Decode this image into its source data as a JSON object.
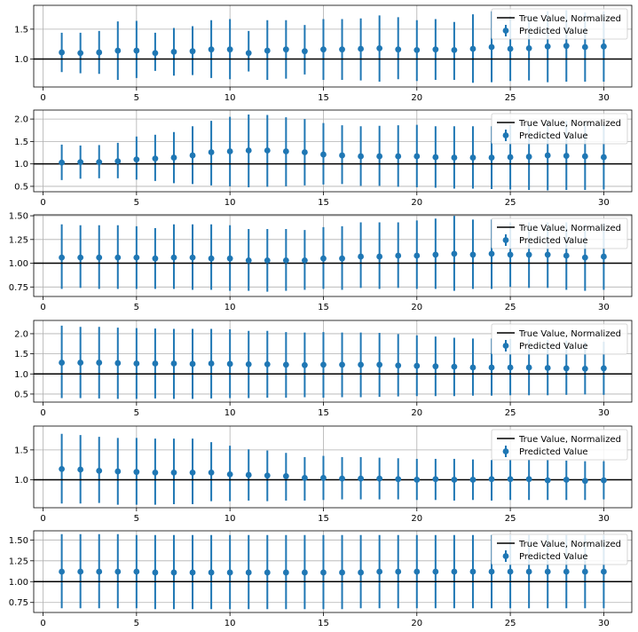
{
  "figure": {
    "background": "#ffffff"
  },
  "style": {
    "marker_color": "#1f77b4",
    "truth_line_color": "#000000",
    "grid_color": "#b0b0b0"
  },
  "chart_data": [
    {
      "type": "errorbar",
      "xlim": [
        -0.5,
        31.5
      ],
      "ylim": [
        0.53,
        1.9
      ],
      "xticks": [
        0,
        5,
        10,
        15,
        20,
        25,
        30
      ],
      "yticks": [
        1.0,
        1.5
      ],
      "ytick_labels": [
        "1.0",
        "1.5"
      ],
      "grid": true,
      "legend_position": "upper right",
      "truth_line": {
        "label": "True Value, Normalized",
        "y": 1.0
      },
      "series": [
        {
          "label": "Predicted Value",
          "x": [
            1,
            2,
            3,
            4,
            5,
            6,
            7,
            8,
            9,
            10,
            11,
            12,
            13,
            14,
            15,
            16,
            17,
            18,
            19,
            20,
            21,
            22,
            23,
            24,
            25,
            26,
            27,
            28,
            29,
            30
          ],
          "y": [
            1.11,
            1.1,
            1.11,
            1.14,
            1.14,
            1.1,
            1.12,
            1.13,
            1.16,
            1.16,
            1.1,
            1.14,
            1.16,
            1.13,
            1.16,
            1.16,
            1.17,
            1.18,
            1.16,
            1.15,
            1.16,
            1.15,
            1.17,
            1.2,
            1.17,
            1.18,
            1.21,
            1.22,
            1.2,
            1.21
          ],
          "ylow": [
            0.78,
            0.76,
            0.75,
            0.65,
            0.68,
            0.8,
            0.72,
            0.73,
            0.68,
            0.66,
            0.79,
            0.65,
            0.67,
            0.74,
            0.65,
            0.65,
            0.64,
            0.62,
            0.66,
            0.63,
            0.65,
            0.65,
            0.6,
            0.61,
            0.63,
            0.64,
            0.61,
            0.62,
            0.62,
            0.62
          ],
          "yhigh": [
            1.44,
            1.44,
            1.47,
            1.63,
            1.64,
            1.44,
            1.52,
            1.55,
            1.65,
            1.67,
            1.47,
            1.65,
            1.65,
            1.57,
            1.67,
            1.67,
            1.68,
            1.73,
            1.7,
            1.65,
            1.67,
            1.62,
            1.75,
            1.8,
            1.72,
            1.73,
            1.8,
            1.82,
            1.78,
            1.8
          ]
        }
      ]
    },
    {
      "type": "errorbar",
      "xlim": [
        -0.5,
        31.5
      ],
      "ylim": [
        0.38,
        2.2
      ],
      "xticks": [
        0,
        5,
        10,
        15,
        20,
        25,
        30
      ],
      "yticks": [
        0.5,
        1.0,
        1.5,
        2.0
      ],
      "ytick_labels": [
        "0.5",
        "1.0",
        "1.5",
        "2.0"
      ],
      "grid": true,
      "legend_position": "upper right",
      "truth_line": {
        "label": "True Value, Normalized",
        "y": 1.0
      },
      "series": [
        {
          "label": "Predicted Value",
          "x": [
            1,
            2,
            3,
            4,
            5,
            6,
            7,
            8,
            9,
            10,
            11,
            12,
            13,
            14,
            15,
            16,
            17,
            18,
            19,
            20,
            21,
            22,
            23,
            24,
            25,
            26,
            27,
            28,
            29,
            30
          ],
          "y": [
            1.03,
            1.04,
            1.04,
            1.06,
            1.1,
            1.12,
            1.14,
            1.19,
            1.26,
            1.28,
            1.3,
            1.3,
            1.28,
            1.26,
            1.21,
            1.19,
            1.17,
            1.17,
            1.17,
            1.17,
            1.15,
            1.14,
            1.14,
            1.14,
            1.15,
            1.16,
            1.19,
            1.18,
            1.17,
            1.15
          ],
          "ylow": [
            0.64,
            0.67,
            0.68,
            0.68,
            0.65,
            0.62,
            0.57,
            0.55,
            0.52,
            0.5,
            0.48,
            0.49,
            0.5,
            0.52,
            0.54,
            0.55,
            0.51,
            0.51,
            0.49,
            0.48,
            0.47,
            0.45,
            0.45,
            0.44,
            0.43,
            0.42,
            0.41,
            0.42,
            0.42,
            0.43
          ],
          "yhigh": [
            1.43,
            1.41,
            1.42,
            1.47,
            1.61,
            1.65,
            1.71,
            1.84,
            1.96,
            2.05,
            2.1,
            2.09,
            2.04,
            2.0,
            1.91,
            1.86,
            1.84,
            1.85,
            1.86,
            1.87,
            1.84,
            1.84,
            1.84,
            1.84,
            1.87,
            1.9,
            1.96,
            1.96,
            1.93,
            1.88
          ]
        }
      ]
    },
    {
      "type": "errorbar",
      "xlim": [
        -0.5,
        31.5
      ],
      "ylim": [
        0.65,
        1.51
      ],
      "xticks": [
        0,
        5,
        10,
        15,
        20,
        25,
        30
      ],
      "yticks": [
        0.75,
        1.0,
        1.25,
        1.5
      ],
      "ytick_labels": [
        "0.75",
        "1.00",
        "1.25",
        "1.50"
      ],
      "grid": true,
      "legend_position": "upper right",
      "truth_line": {
        "label": "True Value, Normalized",
        "y": 1.0
      },
      "series": [
        {
          "label": "Predicted Value",
          "x": [
            1,
            2,
            3,
            4,
            5,
            6,
            7,
            8,
            9,
            10,
            11,
            12,
            13,
            14,
            15,
            16,
            17,
            18,
            19,
            20,
            21,
            22,
            23,
            24,
            25,
            26,
            27,
            28,
            29,
            30
          ],
          "y": [
            1.06,
            1.06,
            1.06,
            1.06,
            1.06,
            1.05,
            1.06,
            1.06,
            1.05,
            1.05,
            1.03,
            1.03,
            1.03,
            1.03,
            1.05,
            1.05,
            1.07,
            1.07,
            1.08,
            1.08,
            1.09,
            1.1,
            1.09,
            1.1,
            1.09,
            1.09,
            1.09,
            1.08,
            1.06,
            1.07
          ],
          "ylow": [
            0.73,
            0.74,
            0.73,
            0.73,
            0.73,
            0.73,
            0.73,
            0.72,
            0.72,
            0.71,
            0.71,
            0.7,
            0.71,
            0.72,
            0.73,
            0.72,
            0.74,
            0.73,
            0.74,
            0.73,
            0.73,
            0.71,
            0.73,
            0.73,
            0.75,
            0.74,
            0.74,
            0.72,
            0.71,
            0.72
          ],
          "yhigh": [
            1.41,
            1.4,
            1.4,
            1.4,
            1.39,
            1.37,
            1.41,
            1.41,
            1.41,
            1.4,
            1.36,
            1.36,
            1.36,
            1.35,
            1.38,
            1.39,
            1.43,
            1.43,
            1.43,
            1.45,
            1.47,
            1.5,
            1.46,
            1.46,
            1.43,
            1.43,
            1.43,
            1.43,
            1.41,
            1.42
          ]
        }
      ]
    },
    {
      "type": "errorbar",
      "xlim": [
        -0.5,
        31.5
      ],
      "ylim": [
        0.3,
        2.33
      ],
      "xticks": [
        0,
        5,
        10,
        15,
        20,
        25,
        30
      ],
      "yticks": [
        0.5,
        1.0,
        1.5,
        2.0
      ],
      "ytick_labels": [
        "0.5",
        "1.0",
        "1.5",
        "2.0"
      ],
      "grid": true,
      "legend_position": "upper right",
      "truth_line": {
        "label": "True Value, Normalized",
        "y": 1.0
      },
      "series": [
        {
          "label": "Predicted Value",
          "x": [
            1,
            2,
            3,
            4,
            5,
            6,
            7,
            8,
            9,
            10,
            11,
            12,
            13,
            14,
            15,
            16,
            17,
            18,
            19,
            20,
            21,
            22,
            23,
            24,
            25,
            26,
            27,
            28,
            29,
            30
          ],
          "y": [
            1.28,
            1.28,
            1.28,
            1.27,
            1.26,
            1.26,
            1.26,
            1.25,
            1.26,
            1.25,
            1.24,
            1.24,
            1.23,
            1.22,
            1.23,
            1.23,
            1.23,
            1.23,
            1.21,
            1.2,
            1.19,
            1.18,
            1.16,
            1.16,
            1.16,
            1.16,
            1.15,
            1.14,
            1.13,
            1.14
          ],
          "ylow": [
            0.4,
            0.4,
            0.39,
            0.38,
            0.38,
            0.39,
            0.38,
            0.38,
            0.39,
            0.4,
            0.4,
            0.41,
            0.41,
            0.42,
            0.41,
            0.42,
            0.42,
            0.43,
            0.44,
            0.45,
            0.45,
            0.45,
            0.46,
            0.46,
            0.47,
            0.47,
            0.47,
            0.48,
            0.49,
            0.48
          ],
          "yhigh": [
            2.2,
            2.17,
            2.17,
            2.15,
            2.14,
            2.13,
            2.12,
            2.12,
            2.12,
            2.11,
            2.07,
            2.07,
            2.04,
            2.03,
            2.04,
            2.03,
            2.03,
            2.02,
            1.99,
            1.96,
            1.93,
            1.9,
            1.88,
            1.88,
            1.87,
            1.86,
            1.85,
            1.83,
            1.8,
            1.8
          ]
        }
      ]
    },
    {
      "type": "errorbar",
      "xlim": [
        -0.5,
        31.5
      ],
      "ylim": [
        0.53,
        1.9
      ],
      "xticks": [
        0,
        5,
        10,
        15,
        20,
        25,
        30
      ],
      "yticks": [
        1.0,
        1.5
      ],
      "ytick_labels": [
        "1.0",
        "1.5"
      ],
      "grid": true,
      "legend_position": "upper right",
      "truth_line": {
        "label": "True Value, Normalized",
        "y": 1.0
      },
      "series": [
        {
          "label": "Predicted Value",
          "x": [
            1,
            2,
            3,
            4,
            5,
            6,
            7,
            8,
            9,
            10,
            11,
            12,
            13,
            14,
            15,
            16,
            17,
            18,
            19,
            20,
            21,
            22,
            23,
            24,
            25,
            26,
            27,
            28,
            29,
            30
          ],
          "y": [
            1.18,
            1.17,
            1.15,
            1.14,
            1.13,
            1.12,
            1.12,
            1.12,
            1.12,
            1.09,
            1.08,
            1.07,
            1.06,
            1.03,
            1.03,
            1.02,
            1.02,
            1.02,
            1.01,
            1.0,
            1.01,
            1.0,
            1.0,
            1.01,
            1.01,
            1.01,
            0.99,
            1.0,
            0.98,
            0.99
          ],
          "ylow": [
            0.6,
            0.6,
            0.61,
            0.58,
            0.58,
            0.58,
            0.59,
            0.59,
            0.64,
            0.64,
            0.65,
            0.64,
            0.65,
            0.65,
            0.66,
            0.67,
            0.67,
            0.67,
            0.67,
            0.66,
            0.66,
            0.65,
            0.66,
            0.65,
            0.66,
            0.66,
            0.66,
            0.66,
            0.66,
            0.67
          ],
          "yhigh": [
            1.77,
            1.75,
            1.72,
            1.7,
            1.7,
            1.69,
            1.69,
            1.69,
            1.63,
            1.57,
            1.51,
            1.49,
            1.45,
            1.38,
            1.4,
            1.38,
            1.38,
            1.37,
            1.36,
            1.35,
            1.35,
            1.35,
            1.34,
            1.33,
            1.33,
            1.34,
            1.33,
            1.32,
            1.31,
            1.31
          ]
        }
      ]
    },
    {
      "type": "errorbar",
      "xlim": [
        -0.5,
        31.5
      ],
      "ylim": [
        0.63,
        1.61
      ],
      "xticks": [
        0,
        5,
        10,
        15,
        20,
        25,
        30
      ],
      "yticks": [
        0.75,
        1.0,
        1.25,
        1.5
      ],
      "ytick_labels": [
        "0.75",
        "1.00",
        "1.25",
        "1.50"
      ],
      "grid": true,
      "legend_position": "upper right",
      "truth_line": {
        "label": "True Value, Normalized",
        "y": 1.0
      },
      "series": [
        {
          "label": "Predicted Value",
          "x": [
            1,
            2,
            3,
            4,
            5,
            6,
            7,
            8,
            9,
            10,
            11,
            12,
            13,
            14,
            15,
            16,
            17,
            18,
            19,
            20,
            21,
            22,
            23,
            24,
            25,
            26,
            27,
            28,
            29,
            30
          ],
          "y": [
            1.12,
            1.12,
            1.12,
            1.12,
            1.12,
            1.11,
            1.11,
            1.11,
            1.11,
            1.11,
            1.11,
            1.11,
            1.11,
            1.11,
            1.11,
            1.11,
            1.11,
            1.12,
            1.12,
            1.12,
            1.12,
            1.12,
            1.12,
            1.12,
            1.12,
            1.12,
            1.12,
            1.12,
            1.12,
            1.12
          ],
          "ylow": [
            0.68,
            0.68,
            0.68,
            0.68,
            0.68,
            0.67,
            0.67,
            0.67,
            0.67,
            0.67,
            0.67,
            0.67,
            0.67,
            0.67,
            0.67,
            0.67,
            0.68,
            0.68,
            0.68,
            0.68,
            0.68,
            0.68,
            0.68,
            0.68,
            0.68,
            0.68,
            0.68,
            0.68,
            0.68,
            0.68
          ],
          "yhigh": [
            1.57,
            1.57,
            1.57,
            1.57,
            1.56,
            1.56,
            1.56,
            1.56,
            1.56,
            1.56,
            1.56,
            1.56,
            1.56,
            1.56,
            1.56,
            1.56,
            1.56,
            1.56,
            1.56,
            1.56,
            1.56,
            1.56,
            1.56,
            1.56,
            1.56,
            1.56,
            1.56,
            1.56,
            1.56,
            1.56
          ]
        }
      ]
    }
  ]
}
